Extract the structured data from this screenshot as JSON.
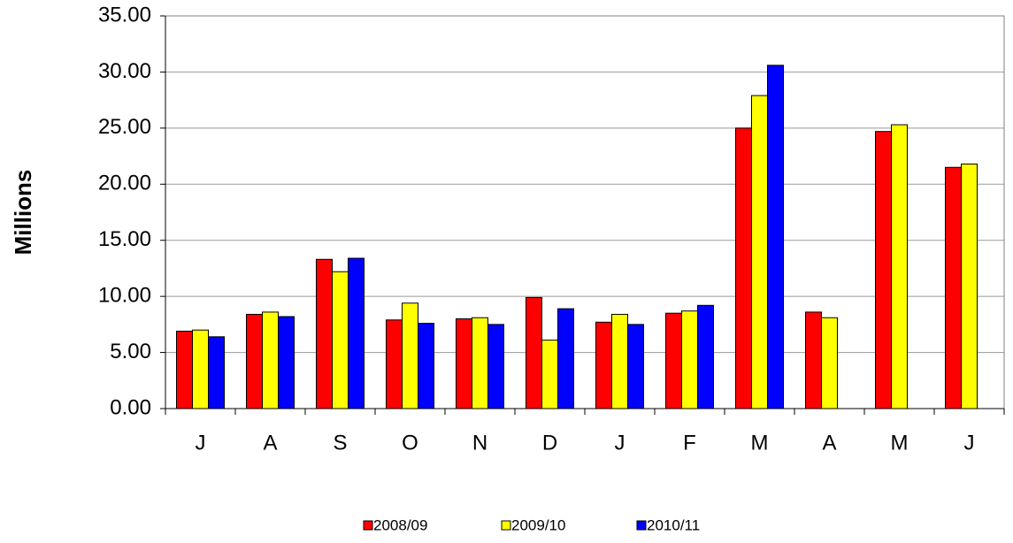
{
  "chart_data": {
    "type": "bar",
    "y_label": "Millions",
    "categories": [
      "J",
      "A",
      "S",
      "O",
      "N",
      "D",
      "J",
      "F",
      "M",
      "A",
      "M",
      "J"
    ],
    "series": [
      {
        "name": "2008/09",
        "color": "#ff0000",
        "values": [
          6.9,
          8.4,
          13.3,
          7.9,
          8.0,
          9.9,
          7.7,
          8.5,
          25.0,
          8.6,
          24.7,
          21.5
        ]
      },
      {
        "name": "2009/10",
        "color": "#ffff00",
        "values": [
          7.0,
          8.6,
          12.2,
          9.4,
          8.1,
          6.1,
          8.4,
          8.7,
          27.9,
          8.1,
          25.3,
          21.8
        ]
      },
      {
        "name": "2010/11",
        "color": "#0000ff",
        "values": [
          6.4,
          8.2,
          13.4,
          7.6,
          7.5,
          8.9,
          7.5,
          9.2,
          30.6,
          null,
          null,
          null
        ]
      }
    ],
    "ylim": [
      0,
      35
    ],
    "yticks": [
      {
        "value": 0,
        "label": "0.00"
      },
      {
        "value": 5,
        "label": "5.00"
      },
      {
        "value": 10,
        "label": "10.00"
      },
      {
        "value": 15,
        "label": "15.00"
      },
      {
        "value": 20,
        "label": "20.00"
      },
      {
        "value": 25,
        "label": "25.00"
      },
      {
        "value": 30,
        "label": "30.00"
      },
      {
        "value": 35,
        "label": "35.00"
      }
    ],
    "grid": true,
    "legend": "bottom"
  }
}
